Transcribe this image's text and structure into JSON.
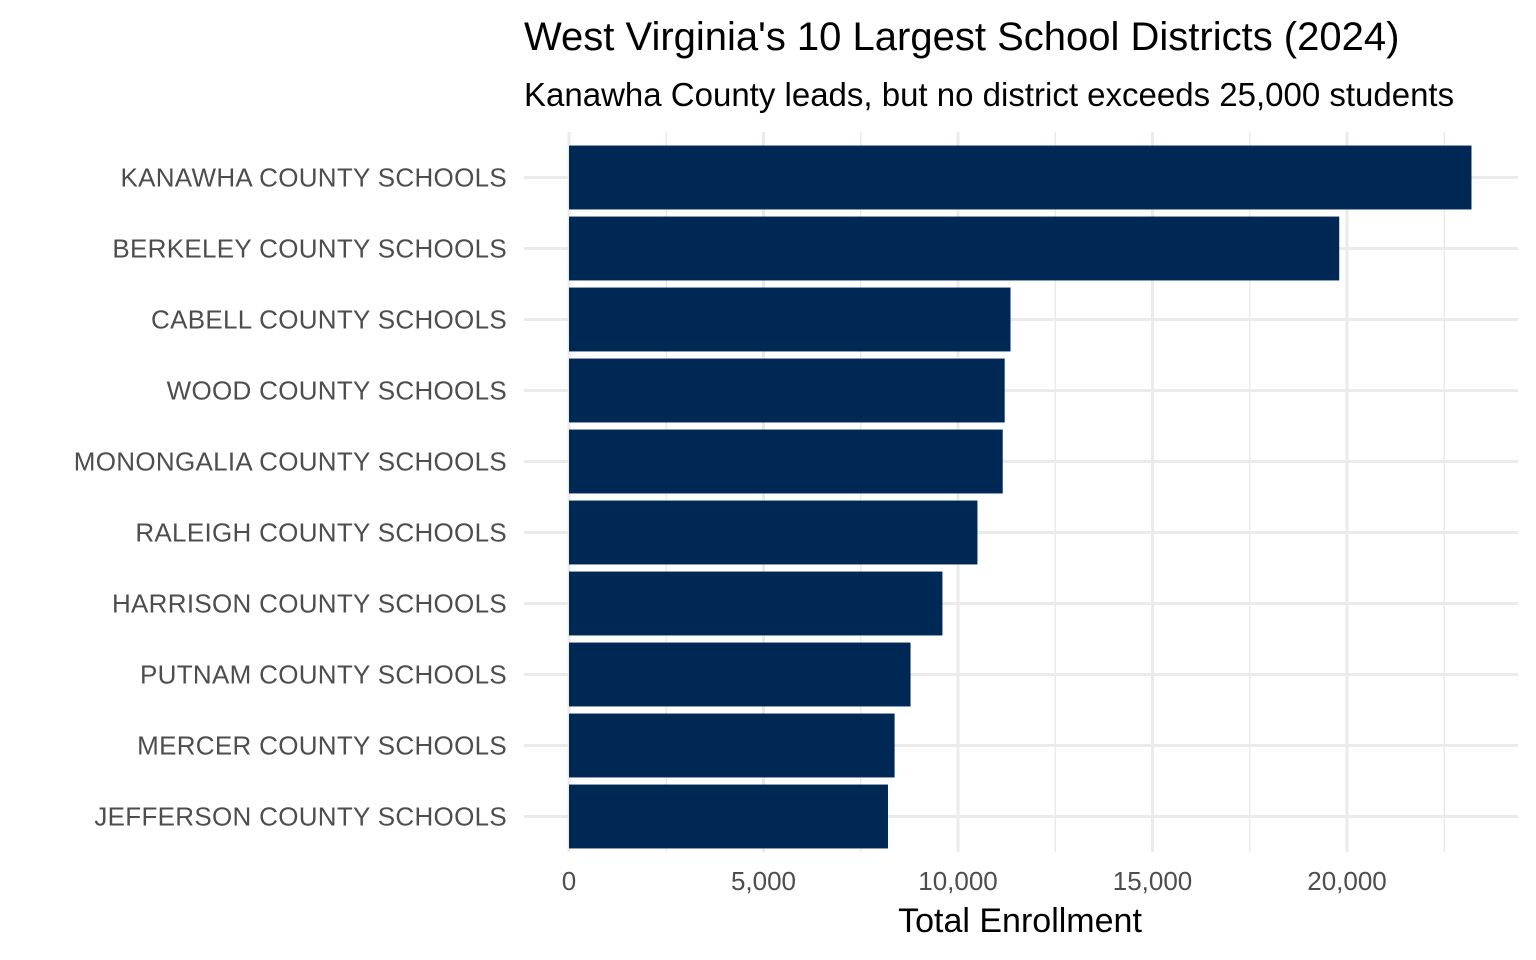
{
  "chart_data": {
    "type": "bar",
    "orientation": "horizontal",
    "title": "West Virginia's 10 Largest School Districts (2024)",
    "subtitle": "Kanawha County leads, but no district exceeds 25,000 students",
    "xlabel": "Total Enrollment",
    "ylabel": "",
    "categories": [
      "KANAWHA COUNTY SCHOOLS",
      "BERKELEY COUNTY SCHOOLS",
      "CABELL COUNTY SCHOOLS",
      "WOOD COUNTY SCHOOLS",
      "MONONGALIA COUNTY SCHOOLS",
      "RALEIGH COUNTY SCHOOLS",
      "HARRISON COUNTY SCHOOLS",
      "PUTNAM COUNTY SCHOOLS",
      "MERCER COUNTY SCHOOLS",
      "JEFFERSON COUNTY SCHOOLS"
    ],
    "values": [
      23200,
      19800,
      11350,
      11200,
      11150,
      10500,
      9600,
      8780,
      8370,
      8200
    ],
    "xlim": [
      0,
      24000
    ],
    "x_ticks": [
      0,
      5000,
      10000,
      15000,
      20000
    ],
    "x_tick_labels": [
      "0",
      "5,000",
      "10,000",
      "15,000",
      "20,000"
    ],
    "bar_color": "#002855",
    "grid": true
  }
}
